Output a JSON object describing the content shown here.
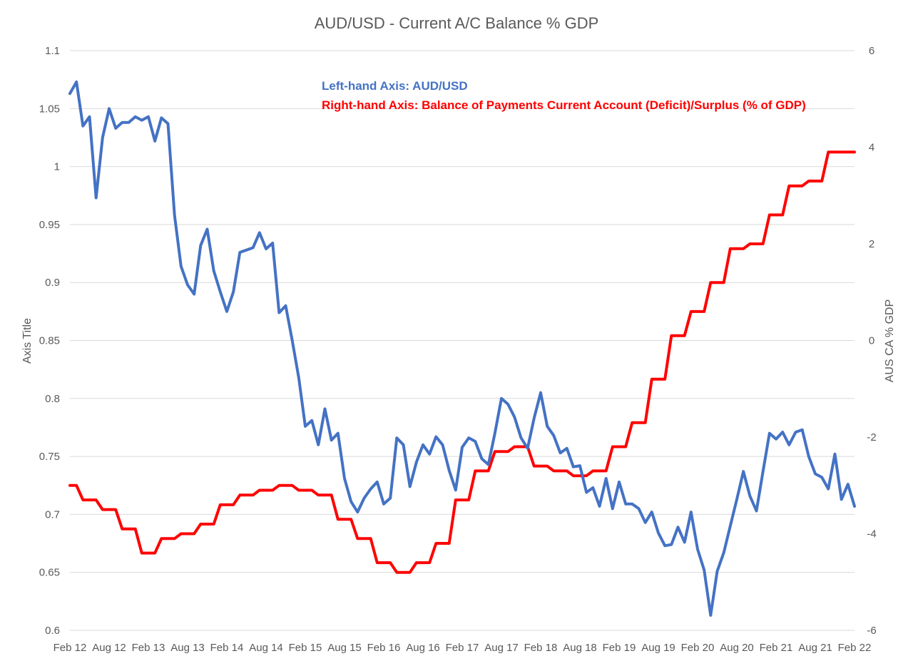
{
  "chart_data": {
    "type": "line",
    "title": "AUD/USD - Current A/C Balance % GDP",
    "ylabel": "Axis Title",
    "y2label": "AUS CA % GDP",
    "ylim": [
      0.6,
      1.1
    ],
    "y2lim": [
      -6,
      6
    ],
    "yticks": [
      "1.1",
      "1.05",
      "1",
      "0.95",
      "0.9",
      "0.85",
      "0.8",
      "0.75",
      "0.7",
      "0.65",
      "0.6"
    ],
    "y2ticks": [
      "6",
      "4",
      "2",
      "0",
      "-2",
      "-4",
      "-6"
    ],
    "xticks": [
      "Feb 12",
      "Aug 12",
      "Feb 13",
      "Aug 13",
      "Feb 14",
      "Aug 14",
      "Feb 15",
      "Aug 15",
      "Feb 16",
      "Aug 16",
      "Feb 17",
      "Aug 17",
      "Feb 18",
      "Aug 18",
      "Feb 19",
      "Aug 19",
      "Feb 20",
      "Aug 20",
      "Feb 21",
      "Aug 21",
      "Feb 22"
    ],
    "annotations": [
      {
        "text": "Left-hand Axis: AUD/USD",
        "color": "#4472c4"
      },
      {
        "text": "Right-hand Axis: Balance of Payments Current Account (Deficit)/Surplus (% of GDP)",
        "color": "#ff0000"
      }
    ],
    "grid": true,
    "colors": {
      "aud": "#4472c4",
      "ca": "#ff0000",
      "grid": "#d9d9d9",
      "text": "#595959"
    },
    "series": [
      {
        "axis": "left",
        "values": [
          1.063,
          1.073,
          1.035,
          1.043,
          0.973,
          1.025,
          1.05,
          1.033,
          1.038,
          1.038,
          1.043,
          1.04,
          1.043,
          1.022,
          1.042,
          1.037,
          0.958,
          0.914,
          0.898,
          0.89,
          0.932,
          0.946,
          0.91,
          0.892,
          0.875,
          0.892,
          0.926,
          0.928,
          0.93,
          0.943,
          0.929,
          0.934,
          0.874,
          0.88,
          0.85,
          0.818,
          0.776,
          0.781,
          0.76,
          0.791,
          0.764,
          0.77,
          0.731,
          0.711,
          0.702,
          0.714,
          0.722,
          0.728,
          0.709,
          0.714,
          0.766,
          0.76,
          0.724,
          0.745,
          0.76,
          0.752,
          0.767,
          0.76,
          0.738,
          0.721,
          0.758,
          0.766,
          0.763,
          0.748,
          0.743,
          0.77,
          0.8,
          0.795,
          0.784,
          0.766,
          0.757,
          0.783,
          0.805,
          0.776,
          0.768,
          0.753,
          0.757,
          0.741,
          0.742,
          0.719,
          0.723,
          0.707,
          0.731,
          0.705,
          0.728,
          0.709,
          0.709,
          0.705,
          0.693,
          0.702,
          0.684,
          0.673,
          0.674,
          0.689,
          0.676,
          0.702,
          0.67,
          0.652,
          0.613,
          0.651,
          0.667,
          0.69,
          0.713,
          0.737,
          0.716,
          0.703,
          0.737,
          0.77,
          0.765,
          0.771,
          0.76,
          0.771,
          0.773,
          0.75,
          0.735,
          0.732,
          0.722,
          0.752,
          0.713,
          0.726,
          0.707
        ]
      },
      {
        "axis": "right",
        "values": [
          -3.0,
          -3.0,
          -3.3,
          -3.3,
          -3.3,
          -3.5,
          -3.5,
          -3.5,
          -3.9,
          -3.9,
          -3.9,
          -4.4,
          -4.4,
          -4.4,
          -4.1,
          -4.1,
          -4.1,
          -4.0,
          -4.0,
          -4.0,
          -3.8,
          -3.8,
          -3.8,
          -3.4,
          -3.4,
          -3.4,
          -3.2,
          -3.2,
          -3.2,
          -3.1,
          -3.1,
          -3.1,
          -3.0,
          -3.0,
          -3.0,
          -3.1,
          -3.1,
          -3.1,
          -3.2,
          -3.2,
          -3.2,
          -3.7,
          -3.7,
          -3.7,
          -4.1,
          -4.1,
          -4.1,
          -4.6,
          -4.6,
          -4.6,
          -4.8,
          -4.8,
          -4.8,
          -4.6,
          -4.6,
          -4.6,
          -4.2,
          -4.2,
          -4.2,
          -3.3,
          -3.3,
          -3.3,
          -2.7,
          -2.7,
          -2.7,
          -2.3,
          -2.3,
          -2.3,
          -2.2,
          -2.2,
          -2.2,
          -2.6,
          -2.6,
          -2.6,
          -2.7,
          -2.7,
          -2.7,
          -2.8,
          -2.8,
          -2.8,
          -2.7,
          -2.7,
          -2.7,
          -2.2,
          -2.2,
          -2.2,
          -1.7,
          -1.7,
          -1.7,
          -0.8,
          -0.8,
          -0.8,
          0.1,
          0.1,
          0.1,
          0.6,
          0.6,
          0.6,
          1.2,
          1.2,
          1.2,
          1.9,
          1.9,
          1.9,
          2.0,
          2.0,
          2.0,
          2.6,
          2.6,
          2.6,
          3.2,
          3.2,
          3.2,
          3.3,
          3.3,
          3.3,
          3.9,
          3.9,
          3.9,
          3.9,
          3.9
        ]
      }
    ]
  }
}
